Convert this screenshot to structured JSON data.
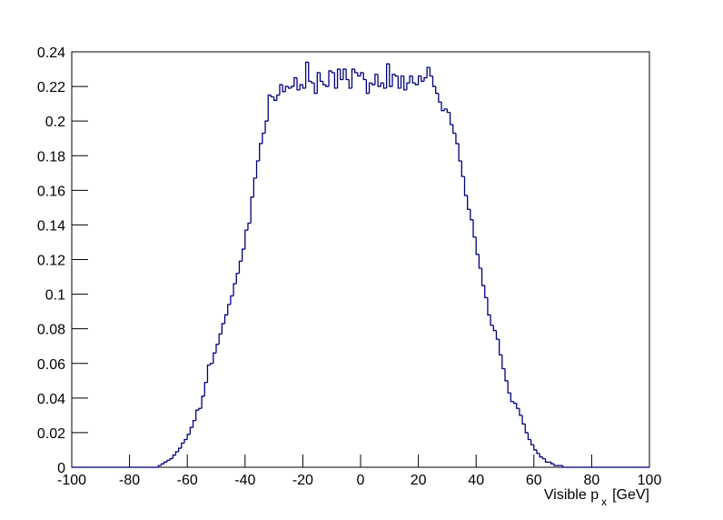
{
  "chart_data": {
    "type": "histogram",
    "x_label": "Visible p",
    "x_label_subscript": "x",
    "x_label_suffix": "[GeV]",
    "color": "#00007f",
    "bins": [
      -100,
      -99,
      -98,
      -97,
      -96,
      -95,
      -94,
      -93,
      -92,
      -91,
      -90,
      -89,
      -88,
      -87,
      -86,
      -85,
      -84,
      -83,
      -82,
      -81,
      -80,
      -79,
      -78,
      -77,
      -76,
      -75,
      -74,
      -73,
      -72,
      -71,
      -70,
      -69,
      -68,
      -67,
      -66,
      -65,
      -64,
      -63,
      -62,
      -61,
      -60,
      -59,
      -58,
      -57,
      -56,
      -55,
      -54,
      -53,
      -52,
      -51,
      -50,
      -49,
      -48,
      -47,
      -46,
      -45,
      -44,
      -43,
      -42,
      -41,
      -40,
      -39,
      -38,
      -37,
      -36,
      -35,
      -34,
      -33,
      -32,
      -31,
      -30,
      -29,
      -28,
      -27,
      -26,
      -25,
      -24,
      -23,
      -22,
      -21,
      -20,
      -19,
      -18,
      -17,
      -16,
      -15,
      -14,
      -13,
      -12,
      -11,
      -10,
      -9,
      -8,
      -7,
      -6,
      -5,
      -4,
      -3,
      -2,
      -1,
      0,
      1,
      2,
      3,
      4,
      5,
      6,
      7,
      8,
      9,
      10,
      11,
      12,
      13,
      14,
      15,
      16,
      17,
      18,
      19,
      20,
      21,
      22,
      23,
      24,
      25,
      26,
      27,
      28,
      29,
      30,
      31,
      32,
      33,
      34,
      35,
      36,
      37,
      38,
      39,
      40,
      41,
      42,
      43,
      44,
      45,
      46,
      47,
      48,
      49,
      50,
      51,
      52,
      53,
      54,
      55,
      56,
      57,
      58,
      59,
      60,
      61,
      62,
      63,
      64,
      65,
      66,
      67,
      68,
      69,
      70,
      71,
      72,
      73,
      74,
      75,
      76,
      77,
      78,
      79,
      80,
      81,
      82,
      83,
      84,
      85,
      86,
      87,
      88,
      89,
      90,
      91,
      92,
      93,
      94,
      95,
      96,
      97,
      98,
      99,
      100
    ],
    "counts": [
      0,
      0,
      0,
      0,
      0,
      0,
      0,
      0,
      0,
      0,
      0,
      0,
      0,
      0,
      0,
      0,
      0,
      0,
      0,
      0,
      0,
      0,
      0,
      0,
      0,
      0,
      0,
      0,
      0,
      0,
      0.001,
      0.002,
      0.003,
      0.004,
      0.005,
      0.007,
      0.009,
      0.011,
      0.014,
      0.016,
      0.019,
      0.023,
      0.027,
      0.033,
      0.034,
      0.041,
      0.049,
      0.059,
      0.06,
      0.066,
      0.071,
      0.077,
      0.083,
      0.088,
      0.094,
      0.099,
      0.106,
      0.112,
      0.119,
      0.126,
      0.137,
      0.141,
      0.156,
      0.167,
      0.177,
      0.187,
      0.193,
      0.2,
      0.215,
      0.214,
      0.212,
      0.215,
      0.221,
      0.217,
      0.22,
      0.219,
      0.22,
      0.225,
      0.218,
      0.221,
      0.219,
      0.234,
      0.223,
      0.222,
      0.216,
      0.228,
      0.223,
      0.221,
      0.22,
      0.229,
      0.228,
      0.219,
      0.23,
      0.224,
      0.23,
      0.224,
      0.219,
      0.23,
      0.228,
      0.226,
      0.228,
      0.224,
      0.216,
      0.222,
      0.221,
      0.227,
      0.22,
      0.222,
      0.219,
      0.233,
      0.22,
      0.227,
      0.226,
      0.219,
      0.226,
      0.218,
      0.222,
      0.226,
      0.222,
      0.221,
      0.226,
      0.223,
      0.225,
      0.231,
      0.226,
      0.22,
      0.216,
      0.211,
      0.206,
      0.207,
      0.205,
      0.198,
      0.193,
      0.187,
      0.177,
      0.168,
      0.157,
      0.149,
      0.143,
      0.133,
      0.123,
      0.115,
      0.105,
      0.098,
      0.088,
      0.082,
      0.079,
      0.074,
      0.065,
      0.057,
      0.05,
      0.043,
      0.038,
      0.037,
      0.034,
      0.03,
      0.025,
      0.02,
      0.016,
      0.013,
      0.01,
      0.008,
      0.006,
      0.005,
      0.003,
      0.003,
      0.002,
      0.001,
      0.001,
      0.001,
      0,
      0,
      0,
      0,
      0,
      0,
      0,
      0,
      0,
      0,
      0,
      0,
      0,
      0,
      0,
      0,
      0,
      0,
      0,
      0,
      0,
      0,
      0,
      0,
      0,
      0,
      0,
      0,
      0,
      0
    ],
    "xlim": [
      -100,
      100
    ],
    "xticks": [
      -100,
      -80,
      -60,
      -40,
      -20,
      0,
      20,
      40,
      60,
      80,
      100
    ],
    "ylim": [
      0,
      0.24
    ],
    "yticks": [
      0,
      0.02,
      0.04,
      0.06,
      0.08,
      0.1,
      0.12,
      0.14,
      0.16,
      0.18,
      0.2,
      0.22,
      0.24
    ]
  }
}
